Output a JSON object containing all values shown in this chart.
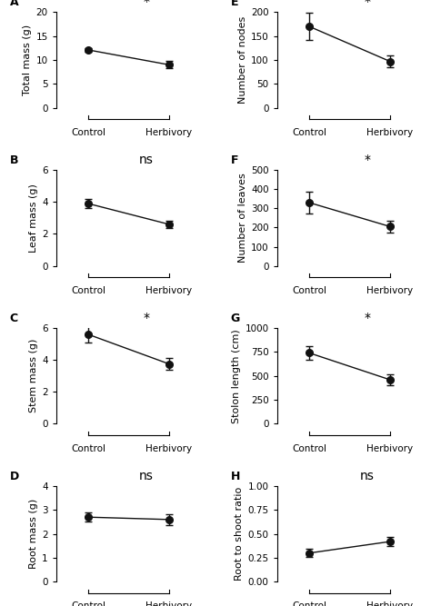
{
  "panels": [
    {
      "label": "A",
      "ylabel": "Total mass (g)",
      "ylim": [
        0,
        20
      ],
      "yticks": [
        0,
        5,
        10,
        15,
        20
      ],
      "control_mean": 12.1,
      "control_err": 0.4,
      "herbivory_mean": 9.0,
      "herbivory_err": 0.75,
      "sig": "*"
    },
    {
      "label": "B",
      "ylabel": "Leaf mass (g)",
      "ylim": [
        0,
        6
      ],
      "yticks": [
        0,
        2,
        4,
        6
      ],
      "control_mean": 3.9,
      "control_err": 0.28,
      "herbivory_mean": 2.6,
      "herbivory_err": 0.22,
      "sig": "ns"
    },
    {
      "label": "C",
      "ylabel": "Stem mass (g)",
      "ylim": [
        0,
        6
      ],
      "yticks": [
        0,
        2,
        4,
        6
      ],
      "control_mean": 5.6,
      "control_err": 0.5,
      "herbivory_mean": 3.75,
      "herbivory_err": 0.35,
      "sig": "*"
    },
    {
      "label": "D",
      "ylabel": "Root mass (g)",
      "ylim": [
        0,
        4
      ],
      "yticks": [
        0,
        1,
        2,
        3,
        4
      ],
      "control_mean": 2.7,
      "control_err": 0.2,
      "herbivory_mean": 2.6,
      "herbivory_err": 0.22,
      "sig": "ns"
    },
    {
      "label": "E",
      "ylabel": "Number of nodes",
      "ylim": [
        0,
        200
      ],
      "yticks": [
        0,
        50,
        100,
        150,
        200
      ],
      "control_mean": 170,
      "control_err": 28,
      "herbivory_mean": 97,
      "herbivory_err": 13,
      "sig": "*"
    },
    {
      "label": "F",
      "ylabel": "Number of leaves",
      "ylim": [
        0,
        500
      ],
      "yticks": [
        0,
        100,
        200,
        300,
        400,
        500
      ],
      "control_mean": 330,
      "control_err": 55,
      "herbivory_mean": 205,
      "herbivory_err": 32,
      "sig": "*"
    },
    {
      "label": "G",
      "ylabel": "Stolon length (cm)",
      "ylim": [
        0,
        1000
      ],
      "yticks": [
        0,
        250,
        500,
        750,
        1000
      ],
      "control_mean": 740,
      "control_err": 75,
      "herbivory_mean": 460,
      "herbivory_err": 55,
      "sig": "*"
    },
    {
      "label": "H",
      "ylabel": "Root to shoot ratio",
      "ylim": [
        0.0,
        1.0
      ],
      "yticks": [
        0.0,
        0.25,
        0.5,
        0.75,
        1.0
      ],
      "control_mean": 0.3,
      "control_err": 0.04,
      "herbivory_mean": 0.42,
      "herbivory_err": 0.05,
      "sig": "ns"
    }
  ],
  "dot_color": "#111111",
  "dot_size": 5.5,
  "line_color": "#111111",
  "capsize": 3,
  "elinewidth": 1.0,
  "tick_fontsize": 7.5,
  "label_fontsize": 8,
  "sig_fontsize": 10,
  "panel_label_fontsize": 9
}
